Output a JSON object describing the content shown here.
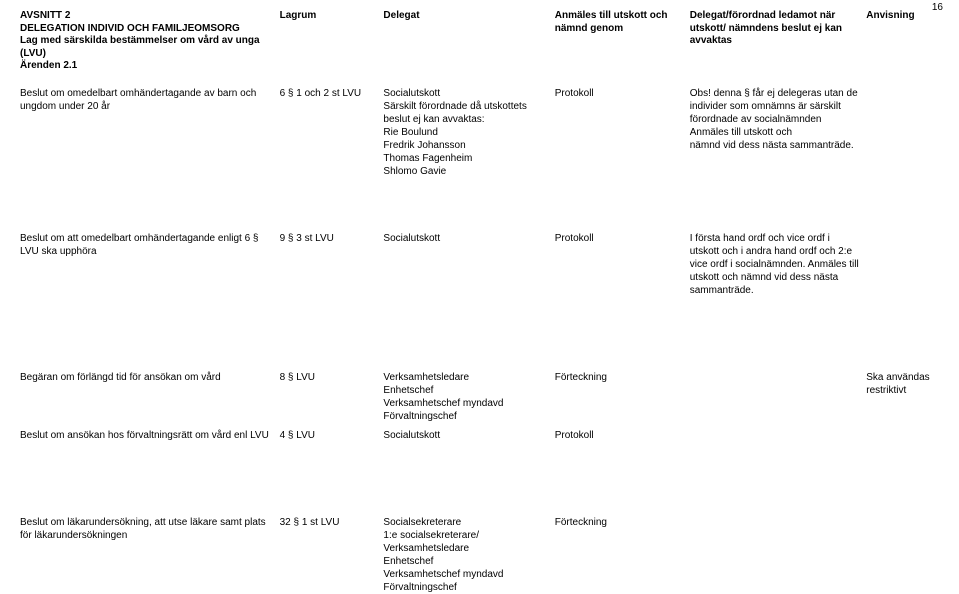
{
  "page_number": "16",
  "header": {
    "col1": "AVSNITT 2\nDELEGATION INDIVID OCH FAMILJEOMSORG\nLag med särskilda bestämmelser om vård av unga (LVU)\nÄrenden 2.1",
    "col2": "Lagrum",
    "col3": "Delegat",
    "col4": "Anmäles till utskott och nämnd genom",
    "col5": "Delegat/förordnad ledamot när utskott/ nämndens beslut ej kan avvaktas",
    "col6": "Anvisning"
  },
  "rows": [
    {
      "arende": "Beslut om omedelbart omhändertagande av barn och ungdom under 20 år",
      "lagrum": "6 § 1 och 2 st LVU",
      "delegat": "Socialutskott\nSärskilt förordnade då utskottets beslut ej kan avvaktas:\nRie Boulund\nFredrik Johansson\nThomas Fagenheim\nShlomo Gavie",
      "anmales": "Protokoll",
      "del2": "Obs! denna § får ej delegeras utan de individer som omnämns är särskilt förordnade av socialnämnden\nAnmäles till utskott och\nnämnd vid dess nästa sammanträde.",
      "anv": ""
    },
    {
      "arende": "Beslut om att omedelbart omhändertagande enligt 6 § LVU ska upphöra",
      "lagrum": "9 § 3 st LVU",
      "delegat": "Socialutskott",
      "anmales": "Protokoll",
      "del2": "I första hand ordf och vice ordf i utskott och i andra hand ordf och 2:e vice ordf i socialnämnden. Anmäles till utskott och nämnd vid dess nästa sammanträde.",
      "anv": ""
    },
    {
      "arende": "Begäran om förlängd tid för ansökan om vård",
      "lagrum": "8 § LVU",
      "delegat": "Verksamhetsledare\nEnhetschef\nVerksamhetschef myndavd\nFörvaltningschef",
      "anmales": "Förteckning",
      "del2": "",
      "anv": "Ska användas restriktivt"
    },
    {
      "arende": "Beslut om ansökan hos förvaltningsrätt om vård enl LVU",
      "lagrum": "4 § LVU",
      "delegat": "Socialutskott",
      "anmales": "Protokoll",
      "del2": "",
      "anv": ""
    },
    {
      "arende": "Beslut om läkarundersökning, att utse läkare samt plats för läkarundersökningen",
      "lagrum": "32 § 1 st LVU",
      "delegat": "Socialsekreterare\n1:e socialsekreterare/\nVerksamhetsledare\nEnhetschef\nVerksamhetschef myndavd\nFörvaltningschef",
      "anmales": "Förteckning",
      "del2": "",
      "anv": ""
    }
  ]
}
